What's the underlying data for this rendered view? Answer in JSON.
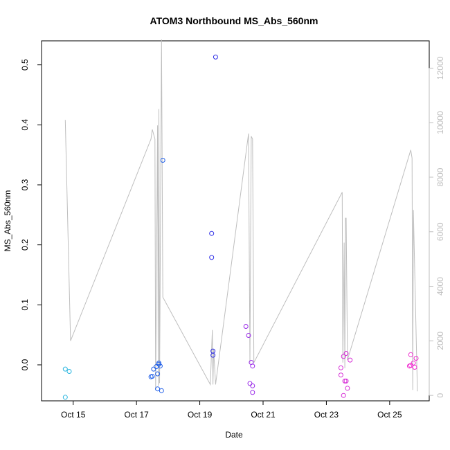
{
  "chart_data": {
    "type": "scatter",
    "title": "ATOM3 Northbound MS_Abs_560nm",
    "xlabel": "Date",
    "ylabel": "MS_Abs_560nm",
    "x_range": [
      "2016-10-14T00:00",
      "2016-10-26T06:00"
    ],
    "ylim": [
      -0.06,
      0.54
    ],
    "y_ticks": [
      0.0,
      0.1,
      0.2,
      0.3,
      0.4,
      0.5
    ],
    "y_tick_labels": [
      "0.0",
      "0.1",
      "0.2",
      "0.3",
      "0.4",
      "0.5"
    ],
    "x_ticks": [
      "2016-10-15",
      "2016-10-17",
      "2016-10-19",
      "2016-10-21",
      "2016-10-23",
      "2016-10-25"
    ],
    "x_tick_labels": [
      "Oct 15",
      "Oct 17",
      "Oct 19",
      "Oct 21",
      "Oct 23",
      "Oct 25"
    ],
    "y2lim": [
      -200,
      13000
    ],
    "y2_ticks": [
      0,
      2000,
      4000,
      6000,
      8000,
      10000,
      12000
    ],
    "y2_tick_labels": [
      "0",
      "2000",
      "4000",
      "6000",
      "8000",
      "10000",
      "12000"
    ],
    "grid": false,
    "colors": {
      "line": "#bebebe",
      "axis": "#000000",
      "right_axis": "#bebebe"
    },
    "points": [
      {
        "x": "2016-10-14T18:00",
        "y": -0.007,
        "color": "#29b6e0"
      },
      {
        "x": "2016-10-14T21:00",
        "y": -0.011,
        "color": "#29b6e0"
      },
      {
        "x": "2016-10-14T18:00",
        "y": -0.054,
        "color": "#29b6e0"
      },
      {
        "x": "2016-10-17T11:00",
        "y": -0.02,
        "color": "#1f5ee8"
      },
      {
        "x": "2016-10-17T12:00",
        "y": -0.019,
        "color": "#1f5ee8"
      },
      {
        "x": "2016-10-17T13:00",
        "y": -0.007,
        "color": "#1f5ee8"
      },
      {
        "x": "2016-10-17T15:00",
        "y": -0.003,
        "color": "#1f5ee8"
      },
      {
        "x": "2016-10-17T16:00",
        "y": -0.015,
        "color": "#1f5ee8"
      },
      {
        "x": "2016-10-17T16:00",
        "y": -0.04,
        "color": "#1f5ee8"
      },
      {
        "x": "2016-10-17T17:00",
        "y": 0.001,
        "color": "#1f5ee8"
      },
      {
        "x": "2016-10-17T17:00",
        "y": 0.003,
        "color": "#1f5ee8"
      },
      {
        "x": "2016-10-17T18:00",
        "y": -0.002,
        "color": "#1f5ee8"
      },
      {
        "x": "2016-10-17T19:00",
        "y": -0.043,
        "color": "#1f5ee8"
      },
      {
        "x": "2016-10-17T20:00",
        "y": 0.341,
        "color": "#1f5ee8"
      },
      {
        "x": "2016-10-19T09:00",
        "y": 0.219,
        "color": "#2b2be6"
      },
      {
        "x": "2016-10-19T09:00",
        "y": 0.179,
        "color": "#2b2be6"
      },
      {
        "x": "2016-10-19T10:00",
        "y": 0.023,
        "color": "#2b2be6"
      },
      {
        "x": "2016-10-19T10:00",
        "y": 0.016,
        "color": "#2b2be6"
      },
      {
        "x": "2016-10-19T12:00",
        "y": 0.513,
        "color": "#2b2be6"
      },
      {
        "x": "2016-10-20T11:00",
        "y": 0.064,
        "color": "#9a2be8"
      },
      {
        "x": "2016-10-20T13:00",
        "y": 0.049,
        "color": "#9a2be8"
      },
      {
        "x": "2016-10-20T14:00",
        "y": -0.031,
        "color": "#9a2be8"
      },
      {
        "x": "2016-10-20T15:00",
        "y": 0.004,
        "color": "#9a2be8"
      },
      {
        "x": "2016-10-20T16:00",
        "y": -0.002,
        "color": "#9a2be8"
      },
      {
        "x": "2016-10-20T16:00",
        "y": -0.035,
        "color": "#9a2be8"
      },
      {
        "x": "2016-10-20T16:00",
        "y": -0.046,
        "color": "#9a2be8"
      },
      {
        "x": "2016-10-23T11:00",
        "y": -0.005,
        "color": "#d62bd6"
      },
      {
        "x": "2016-10-23T11:00",
        "y": -0.017,
        "color": "#d62bd6"
      },
      {
        "x": "2016-10-23T13:00",
        "y": 0.014,
        "color": "#d62bd6"
      },
      {
        "x": "2016-10-23T13:00",
        "y": -0.051,
        "color": "#d62bd6"
      },
      {
        "x": "2016-10-23T14:00",
        "y": -0.027,
        "color": "#d62bd6"
      },
      {
        "x": "2016-10-23T15:00",
        "y": -0.027,
        "color": "#d62bd6"
      },
      {
        "x": "2016-10-23T15:00",
        "y": 0.019,
        "color": "#d62bd6"
      },
      {
        "x": "2016-10-23T16:00",
        "y": -0.039,
        "color": "#d62bd6"
      },
      {
        "x": "2016-10-23T18:00",
        "y": 0.008,
        "color": "#d62bd6"
      },
      {
        "x": "2016-10-25T15:00",
        "y": -0.002,
        "color": "#f02bcf"
      },
      {
        "x": "2016-10-25T16:00",
        "y": 0.017,
        "color": "#f02bcf"
      },
      {
        "x": "2016-10-25T16:00",
        "y": -0.001,
        "color": "#f02bcf"
      },
      {
        "x": "2016-10-25T18:00",
        "y": 0.003,
        "color": "#f02bcf"
      },
      {
        "x": "2016-10-25T19:00",
        "y": -0.004,
        "color": "#f02bcf"
      },
      {
        "x": "2016-10-25T20:00",
        "y": 0.011,
        "color": "#f02bcf"
      }
    ],
    "line_series_y2": [
      {
        "x": "2016-10-14T18:00",
        "y": 10100
      },
      {
        "x": "2016-10-14T22:00",
        "y": 2000
      },
      {
        "x": "2016-10-17T11:00",
        "y": 9400
      },
      {
        "x": "2016-10-17T12:00",
        "y": 9750
      },
      {
        "x": "2016-10-17T14:00",
        "y": 9400
      },
      {
        "x": "2016-10-17T14:30",
        "y": 200
      },
      {
        "x": "2016-10-17T16:00",
        "y": 9900
      },
      {
        "x": "2016-10-17T16:30",
        "y": 350
      },
      {
        "x": "2016-10-17T17:00",
        "y": 10500
      },
      {
        "x": "2016-10-17T17:30",
        "y": 450
      },
      {
        "x": "2016-10-17T19:00",
        "y": 13050
      },
      {
        "x": "2016-10-17T20:00",
        "y": 3600
      },
      {
        "x": "2016-10-19T08:00",
        "y": 400
      },
      {
        "x": "2016-10-19T09:30",
        "y": 2400
      },
      {
        "x": "2016-10-19T10:00",
        "y": 400
      },
      {
        "x": "2016-10-19T10:30",
        "y": 1700
      },
      {
        "x": "2016-10-19T12:00",
        "y": 400
      },
      {
        "x": "2016-10-20T13:00",
        "y": 9600
      },
      {
        "x": "2016-10-20T14:00",
        "y": 1200
      },
      {
        "x": "2016-10-20T15:00",
        "y": 9500
      },
      {
        "x": "2016-10-20T16:00",
        "y": 9400
      },
      {
        "x": "2016-10-20T17:00",
        "y": 1200
      },
      {
        "x": "2016-10-23T12:00",
        "y": 7450
      },
      {
        "x": "2016-10-23T12:30",
        "y": 1200
      },
      {
        "x": "2016-10-23T13:30",
        "y": 5600
      },
      {
        "x": "2016-10-23T14:00",
        "y": 1000
      },
      {
        "x": "2016-10-23T14:30",
        "y": 6500
      },
      {
        "x": "2016-10-23T15:00",
        "y": 6500
      },
      {
        "x": "2016-10-23T16:00",
        "y": 1300
      },
      {
        "x": "2016-10-25T16:00",
        "y": 9000
      },
      {
        "x": "2016-10-25T17:00",
        "y": 8700
      },
      {
        "x": "2016-10-25T17:30",
        "y": 200
      },
      {
        "x": "2016-10-25T18:00",
        "y": 6800
      },
      {
        "x": "2016-10-25T21:00",
        "y": 150
      }
    ]
  }
}
